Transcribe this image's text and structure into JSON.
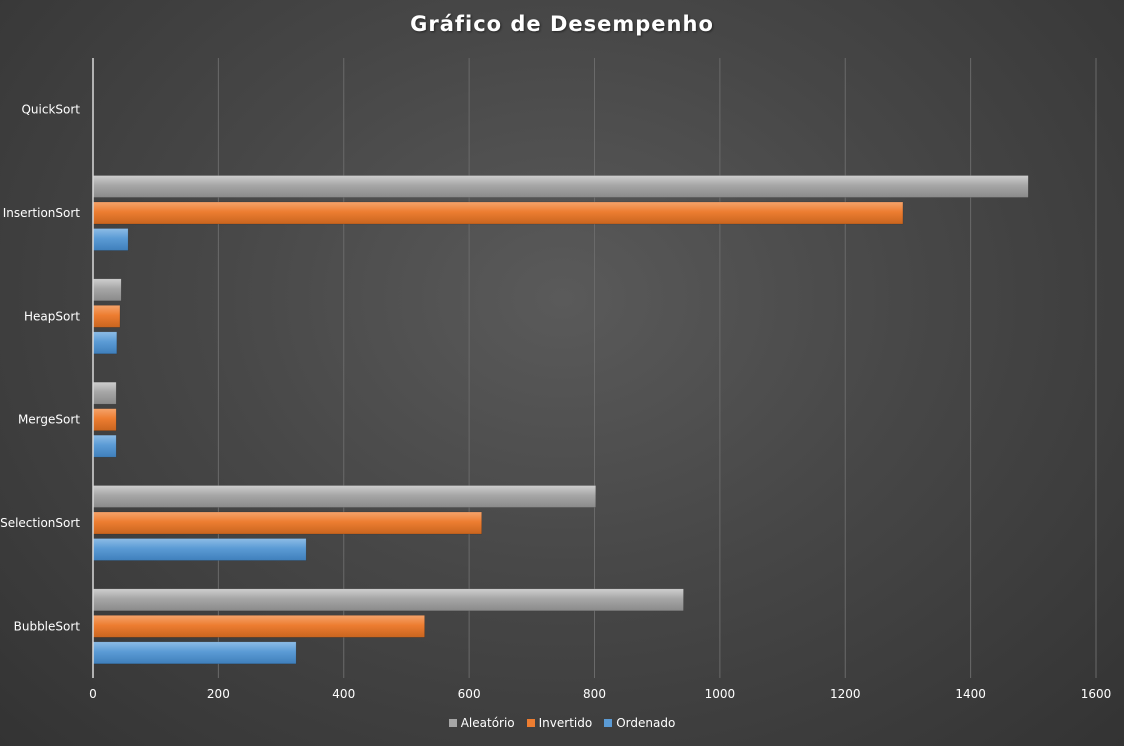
{
  "chart_data": {
    "type": "bar",
    "orientation": "horizontal",
    "title": "Gráfico de Desempenho",
    "categories": [
      "QuickSort",
      "InsertionSort",
      "HeapSort",
      "MergeSort",
      "SelectionSort",
      "BubbleSort"
    ],
    "series": [
      {
        "name": "Aleatório",
        "color": "#a6a6a6",
        "values": [
          0,
          1492,
          45,
          37,
          802,
          942
        ]
      },
      {
        "name": "Invertido",
        "color": "#ed7d31",
        "values": [
          0,
          1292,
          43,
          37,
          620,
          529
        ]
      },
      {
        "name": "Ordenado",
        "color": "#5b9bd5",
        "values": [
          0,
          56,
          38,
          37,
          340,
          324
        ]
      }
    ],
    "xlim": [
      0,
      1600
    ],
    "xticks": [
      "0",
      "200",
      "400",
      "600",
      "800",
      "1000",
      "1200",
      "1400",
      "1600"
    ],
    "grid": "vertical",
    "legend": "bottom"
  }
}
